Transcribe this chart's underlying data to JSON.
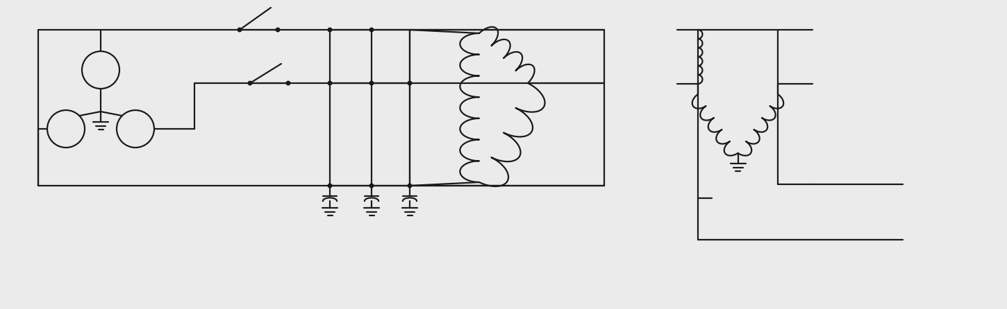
{
  "bg_color": "#ebebeb",
  "line_color": "#1a1a1a",
  "lw": 1.6,
  "fig_width": 14.5,
  "fig_height": 4.46,
  "dpi": 100
}
